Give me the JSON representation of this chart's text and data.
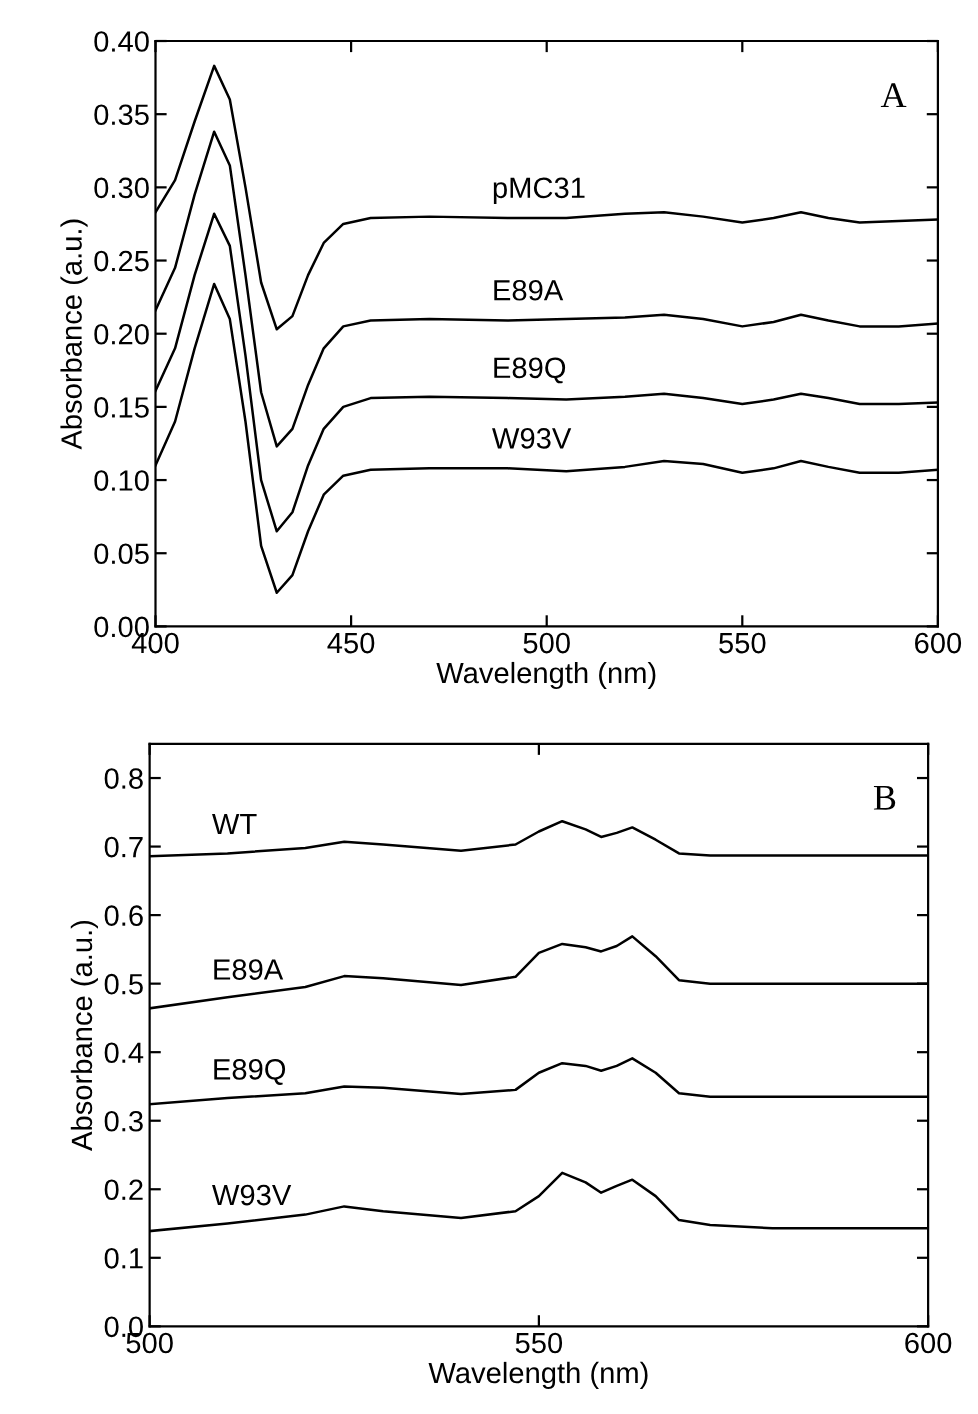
{
  "chart_data": [
    {
      "type": "line",
      "title": "A",
      "xlabel": "Wavelength (nm)",
      "ylabel": "Absorbance (a.u.)",
      "xlim": [
        400,
        600
      ],
      "ylim": [
        0,
        0.4
      ],
      "xticks": [
        400,
        450,
        500,
        550,
        600
      ],
      "yticks": [
        {
          "value": 0,
          "label": "0.00"
        },
        {
          "value": 0.05,
          "label": "0.05"
        },
        {
          "value": 0.1,
          "label": "0.10"
        },
        {
          "value": 0.15,
          "label": "0.15"
        },
        {
          "value": 0.2,
          "label": "0.20"
        },
        {
          "value": 0.25,
          "label": "0.25"
        },
        {
          "value": 0.3,
          "label": "0.30"
        },
        {
          "value": 0.35,
          "label": "0.35"
        },
        {
          "value": 0.4,
          "label": "0.40"
        }
      ],
      "grid": false,
      "legend": false,
      "marker": "none",
      "line_style": "solid",
      "x": [
        400,
        405,
        410,
        415,
        419,
        423,
        427,
        431,
        435,
        439,
        443,
        448,
        455,
        470,
        490,
        505,
        520,
        530,
        540,
        550,
        558,
        565,
        572,
        580,
        590,
        600
      ],
      "series": [
        {
          "name": "pMC31",
          "color": "#000000",
          "values": [
            0.283,
            0.305,
            0.345,
            0.383,
            0.36,
            0.3,
            0.235,
            0.203,
            0.212,
            0.24,
            0.262,
            0.275,
            0.279,
            0.28,
            0.279,
            0.279,
            0.282,
            0.283,
            0.28,
            0.276,
            0.279,
            0.283,
            0.279,
            0.276,
            0.277,
            0.278
          ]
        },
        {
          "name": "E89A",
          "color": "#000000",
          "values": [
            0.216,
            0.245,
            0.295,
            0.338,
            0.315,
            0.24,
            0.16,
            0.123,
            0.135,
            0.165,
            0.19,
            0.205,
            0.209,
            0.21,
            0.209,
            0.21,
            0.211,
            0.213,
            0.21,
            0.205,
            0.208,
            0.213,
            0.209,
            0.205,
            0.205,
            0.207
          ]
        },
        {
          "name": "E89Q",
          "color": "#000000",
          "values": [
            0.161,
            0.19,
            0.24,
            0.282,
            0.26,
            0.185,
            0.1,
            0.065,
            0.078,
            0.11,
            0.135,
            0.15,
            0.156,
            0.157,
            0.156,
            0.155,
            0.157,
            0.159,
            0.156,
            0.152,
            0.155,
            0.159,
            0.156,
            0.152,
            0.152,
            0.153
          ]
        },
        {
          "name": "W93V",
          "color": "#000000",
          "values": [
            0.11,
            0.14,
            0.19,
            0.234,
            0.21,
            0.14,
            0.055,
            0.023,
            0.035,
            0.065,
            0.09,
            0.103,
            0.107,
            0.108,
            0.108,
            0.106,
            0.109,
            0.113,
            0.111,
            0.105,
            0.108,
            0.113,
            0.109,
            0.105,
            0.105,
            0.107
          ]
        }
      ]
    },
    {
      "type": "line",
      "title": "B",
      "xlabel": "Wavelength (nm)",
      "ylabel": "Absorbance (a.u.)",
      "xlim": [
        500,
        600
      ],
      "ylim": [
        0,
        0.85
      ],
      "xticks": [
        500,
        550,
        600
      ],
      "yticks": [
        {
          "value": 0,
          "label": "0.0"
        },
        {
          "value": 0.1,
          "label": "0.1"
        },
        {
          "value": 0.2,
          "label": "0.2"
        },
        {
          "value": 0.3,
          "label": "0.3"
        },
        {
          "value": 0.4,
          "label": "0.4"
        },
        {
          "value": 0.5,
          "label": "0.5"
        },
        {
          "value": 0.6,
          "label": "0.6"
        },
        {
          "value": 0.7,
          "label": "0.7"
        },
        {
          "value": 0.8,
          "label": "0.8"
        }
      ],
      "grid": false,
      "legend": false,
      "marker": "none",
      "line_style": "solid",
      "x": [
        500,
        510,
        520,
        525,
        530,
        540,
        547,
        550,
        553,
        556,
        558,
        560,
        562,
        565,
        568,
        572,
        580,
        590,
        600
      ],
      "series": [
        {
          "name": "WT",
          "color": "#000000",
          "values": [
            0.686,
            0.69,
            0.698,
            0.707,
            0.703,
            0.694,
            0.703,
            0.722,
            0.737,
            0.725,
            0.714,
            0.72,
            0.728,
            0.71,
            0.69,
            0.687,
            0.687,
            0.687,
            0.687
          ]
        },
        {
          "name": "E89A",
          "color": "#000000",
          "values": [
            0.464,
            0.48,
            0.495,
            0.511,
            0.508,
            0.498,
            0.51,
            0.545,
            0.558,
            0.553,
            0.547,
            0.555,
            0.569,
            0.54,
            0.505,
            0.5,
            0.5,
            0.5,
            0.5
          ]
        },
        {
          "name": "E89Q",
          "color": "#000000",
          "values": [
            0.324,
            0.333,
            0.34,
            0.35,
            0.348,
            0.339,
            0.345,
            0.37,
            0.384,
            0.38,
            0.373,
            0.38,
            0.391,
            0.37,
            0.34,
            0.335,
            0.335,
            0.335,
            0.335
          ]
        },
        {
          "name": "W93V",
          "color": "#000000",
          "values": [
            0.139,
            0.15,
            0.163,
            0.175,
            0.168,
            0.158,
            0.168,
            0.19,
            0.224,
            0.21,
            0.195,
            0.205,
            0.214,
            0.19,
            0.155,
            0.148,
            0.143,
            0.143,
            0.143
          ]
        }
      ]
    }
  ]
}
